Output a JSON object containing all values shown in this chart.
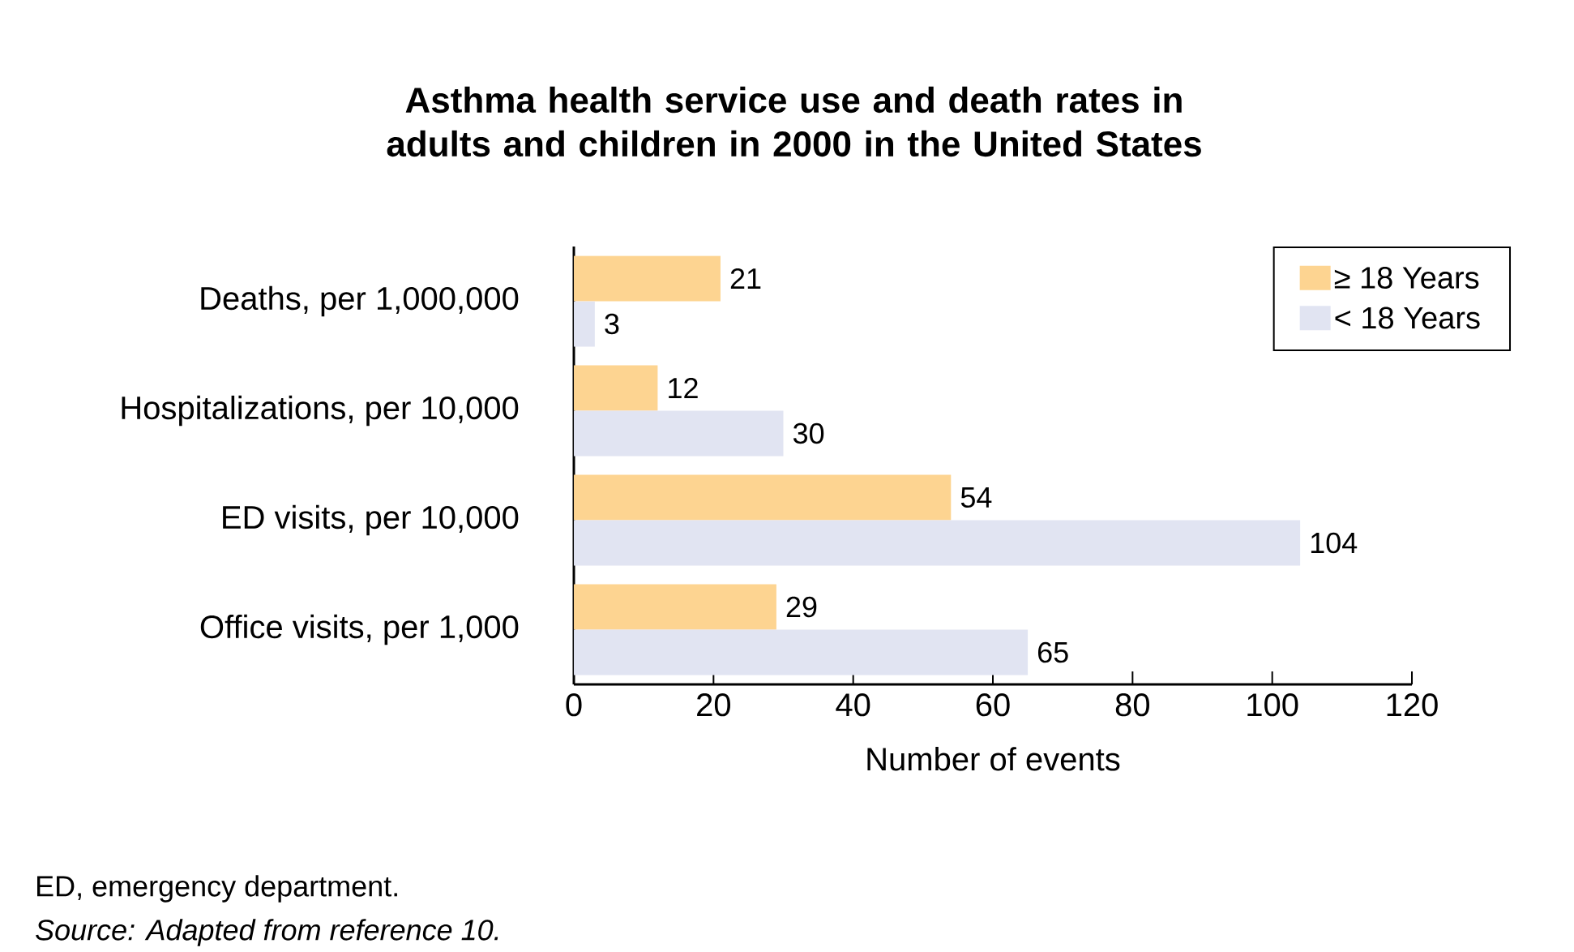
{
  "chart_data": {
    "type": "bar",
    "orientation": "horizontal",
    "title": "Asthma health service use and death rates in adults and children in 2000 in the United States",
    "xlabel": "Number of events",
    "categories": [
      "Deaths, per 1,000,000",
      "Hospitalizations, per 10,000",
      "ED visits, per 10,000",
      "Office visits, per 1,000"
    ],
    "series": [
      {
        "name": "≥ 18 Years",
        "color": "#fdd491",
        "values": [
          21,
          12,
          54,
          29
        ]
      },
      {
        "name": "< 18 Years",
        "color": "#e1e4f2",
        "values": [
          3,
          30,
          104,
          65
        ]
      }
    ],
    "xlim": [
      0,
      120
    ],
    "xticks": [
      0,
      20,
      40,
      60,
      80,
      100,
      120
    ],
    "data_labels": true,
    "legend": "top right",
    "grid": false,
    "annotations": [
      "ED, emergency department.",
      "Source: Adapted from reference 10."
    ]
  }
}
